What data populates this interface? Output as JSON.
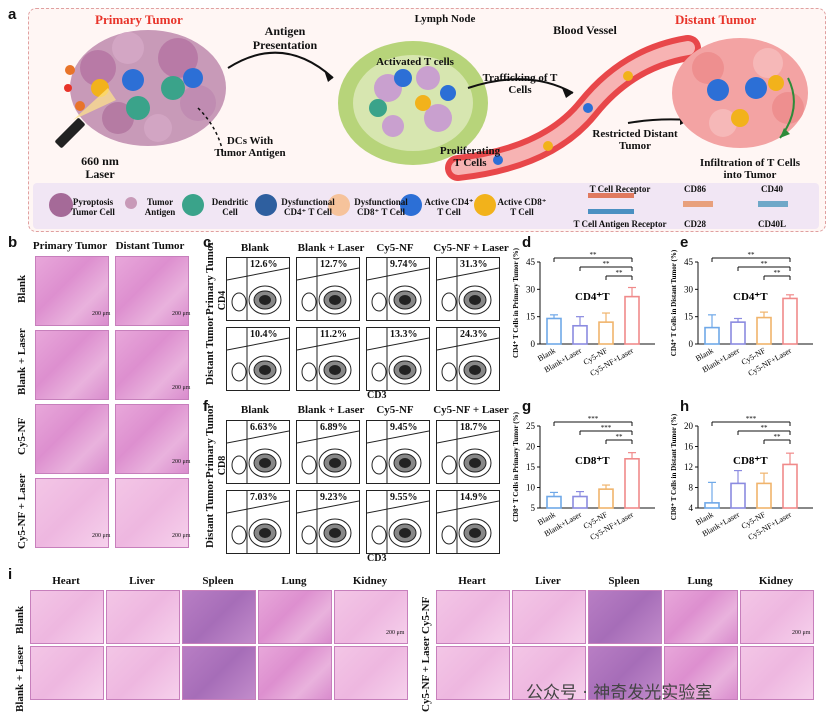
{
  "panel_letters": {
    "a": "a",
    "b": "b",
    "c": "c",
    "d": "d",
    "e": "e",
    "f": "f",
    "g": "g",
    "h": "h",
    "i": "i"
  },
  "panel_a": {
    "primary_tumor": "Primary Tumor",
    "antigen_presentation": "Antigen\nPresentation",
    "lymph_node": "Lymph Node",
    "activated_t_cells": "Activated T cells",
    "blood_vessel": "Blood Vessel",
    "distant_tumor": "Distant Tumor",
    "trafficking": "Trafficking of T\nCells",
    "proliferating": "Proliferating\nT Cells",
    "restricted": "Restricted Distant\nTumor",
    "infiltration": "Infiltration of T Cells\ninto Tumor",
    "dcs": "DCs With\nTumor Antigen",
    "laser": "660 nm\nLaser",
    "colors": {
      "primary": "#e8342a",
      "distant": "#e8342a",
      "active_cd4": "#2c6fd6",
      "active_cd8": "#f2b21b",
      "tumor": "#b8719f",
      "dc": "#3aa38a",
      "node": "#9bc45a",
      "vessel": "#e8474a"
    }
  },
  "legend": [
    {
      "label": "Pyroptosis\nTumor Cell",
      "icon": "pyroptosis-cell-icon"
    },
    {
      "label": "Tumor\nAntigen",
      "icon": "tumor-antigen-icon"
    },
    {
      "label": "Dendritic\nCell",
      "icon": "dendritic-cell-icon"
    },
    {
      "label": "Dysfunctional\nCD4⁺ T Cell",
      "icon": "dysfunctional-cd4-icon"
    },
    {
      "label": "Dysfunctional\nCD8⁺ T Cell",
      "icon": "dysfunctional-cd8-icon"
    },
    {
      "label": "Active CD4⁺\nT Cell",
      "icon": "active-cd4-icon"
    },
    {
      "label": "Active CD8⁺\nT Cell",
      "icon": "active-cd8-icon"
    },
    {
      "label": "T Cell Receptor",
      "icon": "tcr-icon"
    },
    {
      "label": "T Cell Antigen Receptor",
      "icon": "tcar-icon"
    },
    {
      "label": "CD86",
      "icon": "cd86-icon"
    },
    {
      "label": "CD28",
      "icon": "cd28-icon"
    },
    {
      "label": "CD40",
      "icon": "cd40-icon"
    },
    {
      "label": "CD40L",
      "icon": "cd40l-icon"
    }
  ],
  "panel_b": {
    "cols": [
      "Primary Tumor",
      "Distant Tumor"
    ],
    "rows": [
      "Blank",
      "Blank + Laser",
      "Cy5-NF",
      "Cy5-NF + Laser"
    ],
    "scale": "200 μm"
  },
  "panel_c": {
    "cols": [
      "Blank",
      "Blank + Laser",
      "Cy5-NF",
      "Cy5-NF + Laser"
    ],
    "rows": [
      "Primary Tumor",
      "Distant Tumor"
    ],
    "yaxis": "CD4",
    "xaxis": "CD3",
    "primary": [
      "12.6%",
      "12.7%",
      "9.74%",
      "31.3%"
    ],
    "distant": [
      "10.4%",
      "11.2%",
      "13.3%",
      "24.3%"
    ]
  },
  "panel_f": {
    "cols": [
      "Blank",
      "Blank + Laser",
      "Cy5-NF",
      "Cy5-NF + Laser"
    ],
    "rows": [
      "Primary Tumor",
      "Distant Tumor"
    ],
    "yaxis": "CD8",
    "xaxis": "CD3",
    "primary": [
      "6.63%",
      "6.89%",
      "9.45%",
      "18.7%"
    ],
    "distant": [
      "7.03%",
      "9.23%",
      "9.55%",
      "14.9%"
    ]
  },
  "chart_data": [
    {
      "type": "bar",
      "panel": "d",
      "title": "CD4⁺T",
      "ylabel": "CD4⁺ T Cells in Primary Tumor (%)",
      "ylim": [
        0,
        45
      ],
      "yticks": [
        0,
        15,
        30,
        45
      ],
      "categories": [
        "Blank",
        "Blank+Laser",
        "Cy5-NF",
        "Cy5-NF+Laser"
      ],
      "values": [
        14,
        10,
        12,
        26
      ],
      "errors": [
        2,
        5,
        5,
        5
      ],
      "colors": [
        "#6fa8e8",
        "#8b8be0",
        "#f0b46c",
        "#f08a8a"
      ],
      "significance": [
        "**",
        "**",
        "**"
      ]
    },
    {
      "type": "bar",
      "panel": "e",
      "title": "CD4⁺T",
      "ylabel": "CD4⁺ T Cells in Distant Tumor (%)",
      "ylim": [
        0,
        45
      ],
      "yticks": [
        0,
        15,
        30,
        45
      ],
      "categories": [
        "Blank",
        "Blank+Laser",
        "Cy5-NF",
        "Cy5-NF+Laser"
      ],
      "values": [
        9,
        12,
        14.5,
        25
      ],
      "errors": [
        7,
        2,
        3,
        2
      ],
      "colors": [
        "#6fa8e8",
        "#8b8be0",
        "#f0b46c",
        "#f08a8a"
      ],
      "significance": [
        "**",
        "**",
        "**"
      ]
    },
    {
      "type": "bar",
      "panel": "g",
      "title": "CD8⁺T",
      "ylabel": "CD8⁺ T Cells in Primary Tumor (%)",
      "ylim": [
        5,
        25
      ],
      "yticks": [
        5,
        10,
        15,
        20,
        25
      ],
      "categories": [
        "Blank",
        "Blank+Laser",
        "Cy5-NF",
        "Cy5-NF+Laser"
      ],
      "values": [
        7.8,
        7.8,
        9.6,
        17
      ],
      "errors": [
        1,
        1.2,
        1,
        1.5
      ],
      "colors": [
        "#6fa8e8",
        "#8b8be0",
        "#f0b46c",
        "#f08a8a"
      ],
      "significance": [
        "***",
        "***",
        "**"
      ]
    },
    {
      "type": "bar",
      "panel": "h",
      "title": "CD8⁺T",
      "ylabel": "CD8⁺ T Cells in Distant Tumor (%)",
      "ylim": [
        4,
        20
      ],
      "yticks": [
        4,
        8,
        12,
        16,
        20
      ],
      "categories": [
        "Blank",
        "Blank+Laser",
        "Cy5-NF",
        "Cy5-NF+Laser"
      ],
      "values": [
        5,
        8.8,
        8.8,
        12.5
      ],
      "errors": [
        4,
        2.5,
        2,
        2.2
      ],
      "colors": [
        "#6fa8e8",
        "#8b8be0",
        "#f0b46c",
        "#f08a8a"
      ],
      "significance": [
        "***",
        "**",
        "**"
      ]
    }
  ],
  "panel_i": {
    "cols": [
      "Heart",
      "Liver",
      "Spleen",
      "Lung",
      "Kidney"
    ],
    "rows_left": [
      "Blank",
      "Blank + Laser"
    ],
    "rows_right": [
      "Cy5-NF",
      "Cy5-NF + Laser"
    ],
    "scale": "200 μm"
  },
  "watermark": "公众号 · 神奇发光实验室"
}
